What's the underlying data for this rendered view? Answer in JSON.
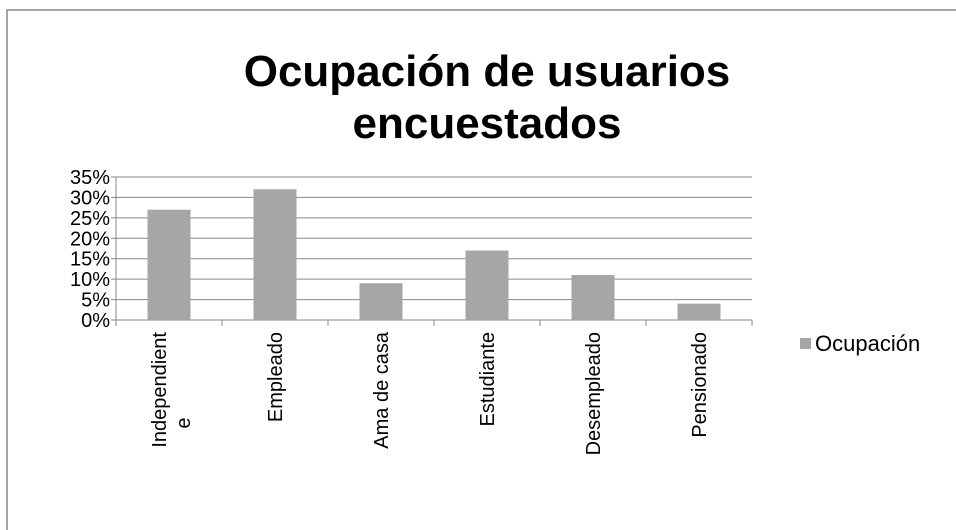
{
  "chart_data": {
    "type": "bar",
    "title": "Ocupación de usuarios encuestados",
    "categories": [
      "Independiente",
      "Empleado",
      "Ama de casa",
      "Estudiante",
      "Desempleado",
      "Pensionado"
    ],
    "series": [
      {
        "name": "Ocupación",
        "color": "#a6a6a6",
        "values": [
          27,
          32,
          9,
          17,
          11,
          4
        ]
      }
    ],
    "ylim": [
      0,
      35
    ],
    "yticks": [
      {
        "value": 0,
        "label": "0%"
      },
      {
        "value": 5,
        "label": "5%"
      },
      {
        "value": 10,
        "label": "10%"
      },
      {
        "value": 15,
        "label": "15%"
      },
      {
        "value": 20,
        "label": "20%"
      },
      {
        "value": 25,
        "label": "25%"
      },
      {
        "value": 30,
        "label": "30%"
      },
      {
        "value": 35,
        "label": "35%"
      }
    ],
    "grid": true,
    "legend": "right"
  }
}
